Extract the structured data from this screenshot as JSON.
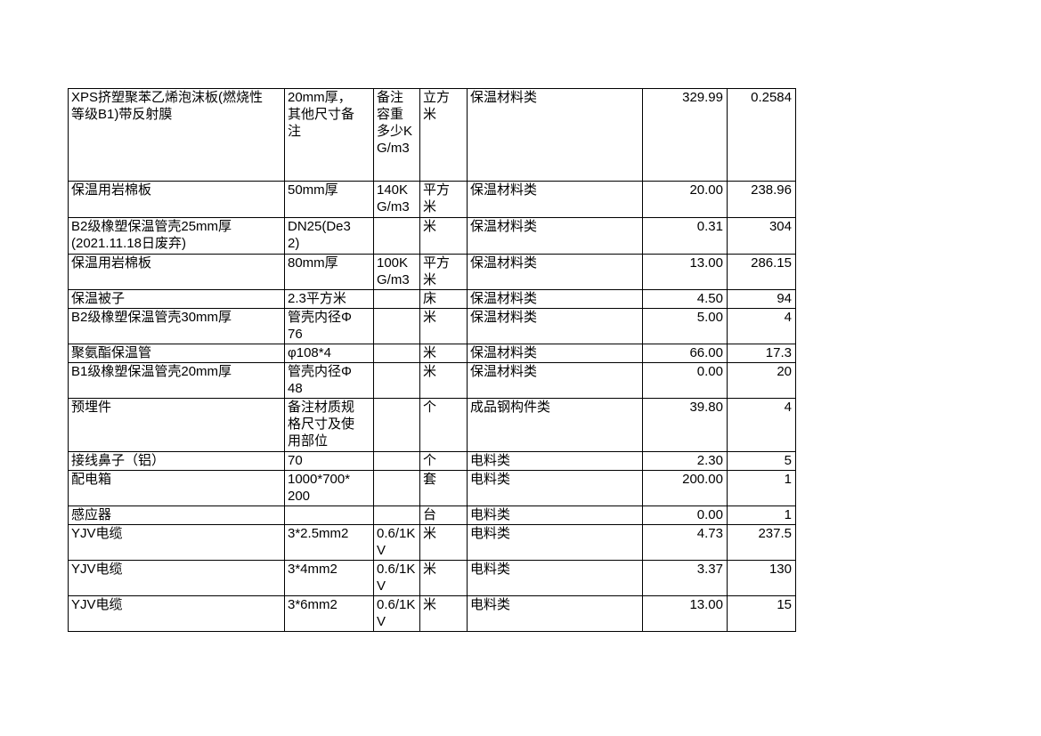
{
  "page": {
    "background_color": "#ffffff",
    "border_color": "#000000"
  },
  "table": {
    "columns": [
      "name",
      "spec",
      "remark",
      "unit",
      "category",
      "price",
      "qty"
    ],
    "rows": [
      {
        "name": "XPS挤塑聚苯乙烯泡沫板(燃烧性等级B1)带反射膜",
        "spec": "20mm厚，其他尺寸备注",
        "remark": "备注容重多少KG/m3",
        "unit": "立方米",
        "category": "保温材料类",
        "price": "329.99",
        "qty": "0.2584"
      },
      {
        "name": "保温用岩棉板",
        "spec": "50mm厚",
        "remark": "140KG/m3",
        "unit": "平方米",
        "category": "保温材料类",
        "price": "20.00",
        "qty": "238.96"
      },
      {
        "name": "B2级橡塑保温管壳25mm厚(2021.11.18日废弃)",
        "spec": "DN25(De32)",
        "remark": "",
        "unit": "米",
        "category": "保温材料类",
        "price": "0.31",
        "qty": "304"
      },
      {
        "name": "保温用岩棉板",
        "spec": "80mm厚",
        "remark": "100KG/m3",
        "unit": "平方米",
        "category": "保温材料类",
        "price": "13.00",
        "qty": "286.15"
      },
      {
        "name": "保温被子",
        "spec": "2.3平方米",
        "remark": "",
        "unit": "床",
        "category": "保温材料类",
        "price": "4.50",
        "qty": "94"
      },
      {
        "name": "B2级橡塑保温管壳30mm厚",
        "spec": "管壳内径Φ76",
        "remark": "",
        "unit": "米",
        "category": "保温材料类",
        "price": "5.00",
        "qty": "4"
      },
      {
        "name": "聚氨酯保温管",
        "spec": "φ108*4",
        "remark": "",
        "unit": "米",
        "category": "保温材料类",
        "price": "66.00",
        "qty": "17.3"
      },
      {
        "name": "B1级橡塑保温管壳20mm厚",
        "spec": "管壳内径Φ48",
        "remark": "",
        "unit": "米",
        "category": "保温材料类",
        "price": "0.00",
        "qty": "20"
      },
      {
        "name": "预埋件",
        "spec": "备注材质规格尺寸及使用部位",
        "remark": "",
        "unit": "个",
        "category": "成品钢构件类",
        "price": "39.80",
        "qty": "4"
      },
      {
        "name": "接线鼻子（铝）",
        "spec": "70",
        "remark": "",
        "unit": "个",
        "category": "电料类",
        "price": "2.30",
        "qty": "5"
      },
      {
        "name": "配电箱",
        "spec": "1000*700*200",
        "remark": "",
        "unit": "套",
        "category": "电料类",
        "price": "200.00",
        "qty": "1"
      },
      {
        "name": "感应器",
        "spec": "",
        "remark": "",
        "unit": "台",
        "category": "电料类",
        "price": "0.00",
        "qty": "1"
      },
      {
        "name": "YJV电缆",
        "spec": "3*2.5mm2",
        "remark": "0.6/1KV",
        "unit": "米",
        "category": "电料类",
        "price": "4.73",
        "qty": "237.5"
      },
      {
        "name": "YJV电缆",
        "spec": "3*4mm2",
        "remark": "0.6/1KV",
        "unit": "米",
        "category": "电料类",
        "price": "3.37",
        "qty": "130"
      },
      {
        "name": "YJV电缆",
        "spec": "3*6mm2",
        "remark": "0.6/1KV",
        "unit": "米",
        "category": "电料类",
        "price": "13.00",
        "qty": "15"
      }
    ]
  }
}
